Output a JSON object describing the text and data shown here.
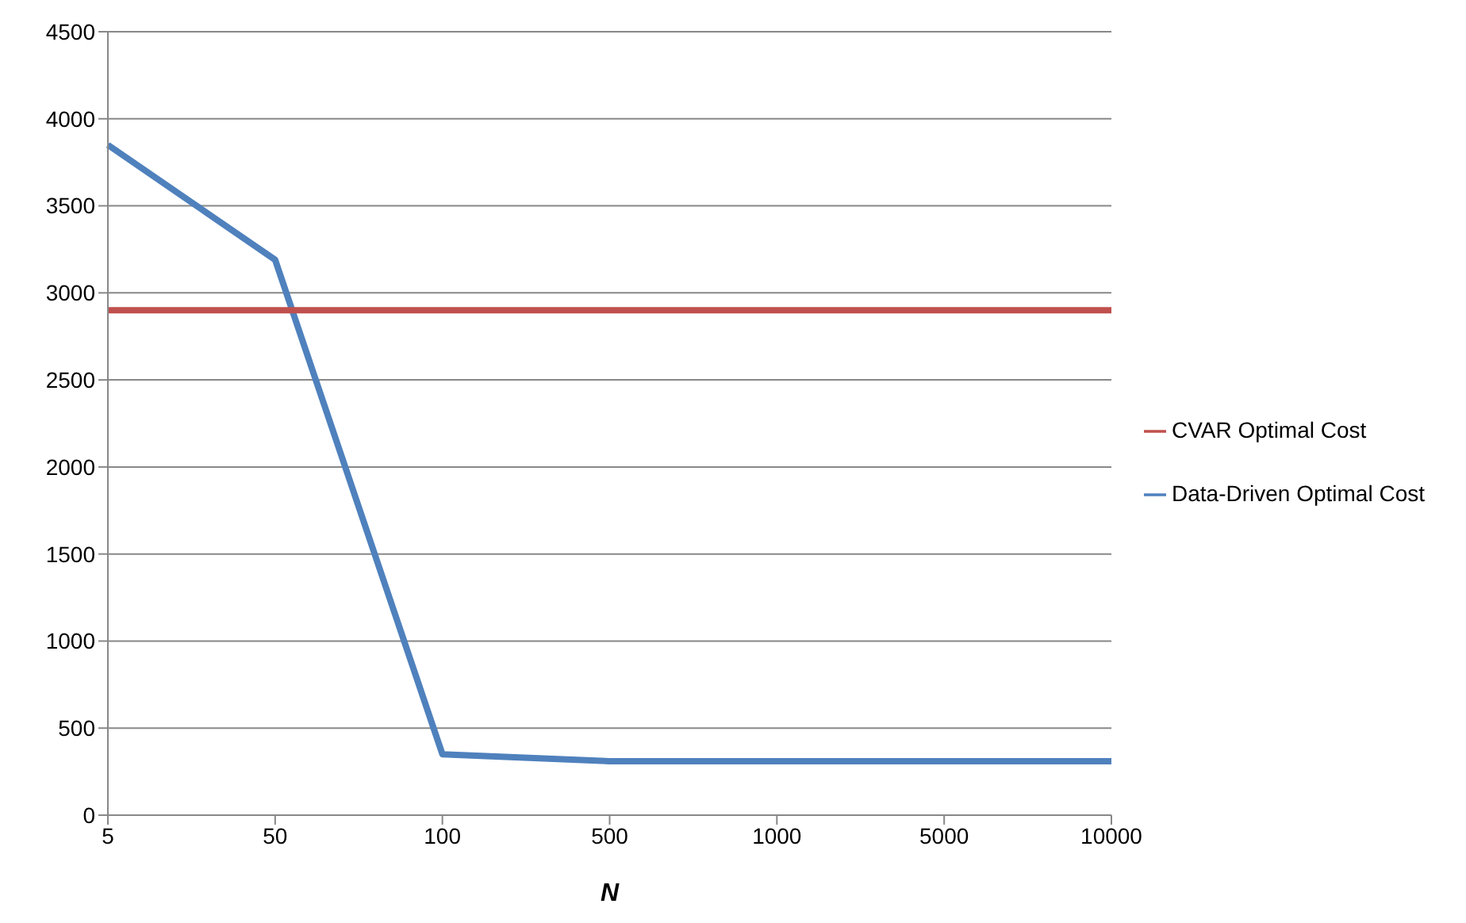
{
  "chart_data": {
    "type": "line",
    "xlabel": "N",
    "categories": [
      "5",
      "50",
      "100",
      "500",
      "1000",
      "5000",
      "10000"
    ],
    "series": [
      {
        "name": "Data-Driven Optimal Cost",
        "color": "#4f81bd",
        "values": [
          3850,
          3190,
          350,
          310,
          310,
          310,
          310
        ]
      },
      {
        "name": "CVAR Optimal Cost",
        "color": "#c0504d",
        "values": [
          2900,
          2900,
          2900,
          2900,
          2900,
          2900,
          2900
        ]
      }
    ],
    "ylim": [
      0,
      4500
    ],
    "yticks": [
      0,
      500,
      1000,
      1500,
      2000,
      2500,
      3000,
      3500,
      4000,
      4500
    ],
    "grid": "y",
    "legend": "right",
    "marker": "none",
    "line_style": "solid"
  }
}
